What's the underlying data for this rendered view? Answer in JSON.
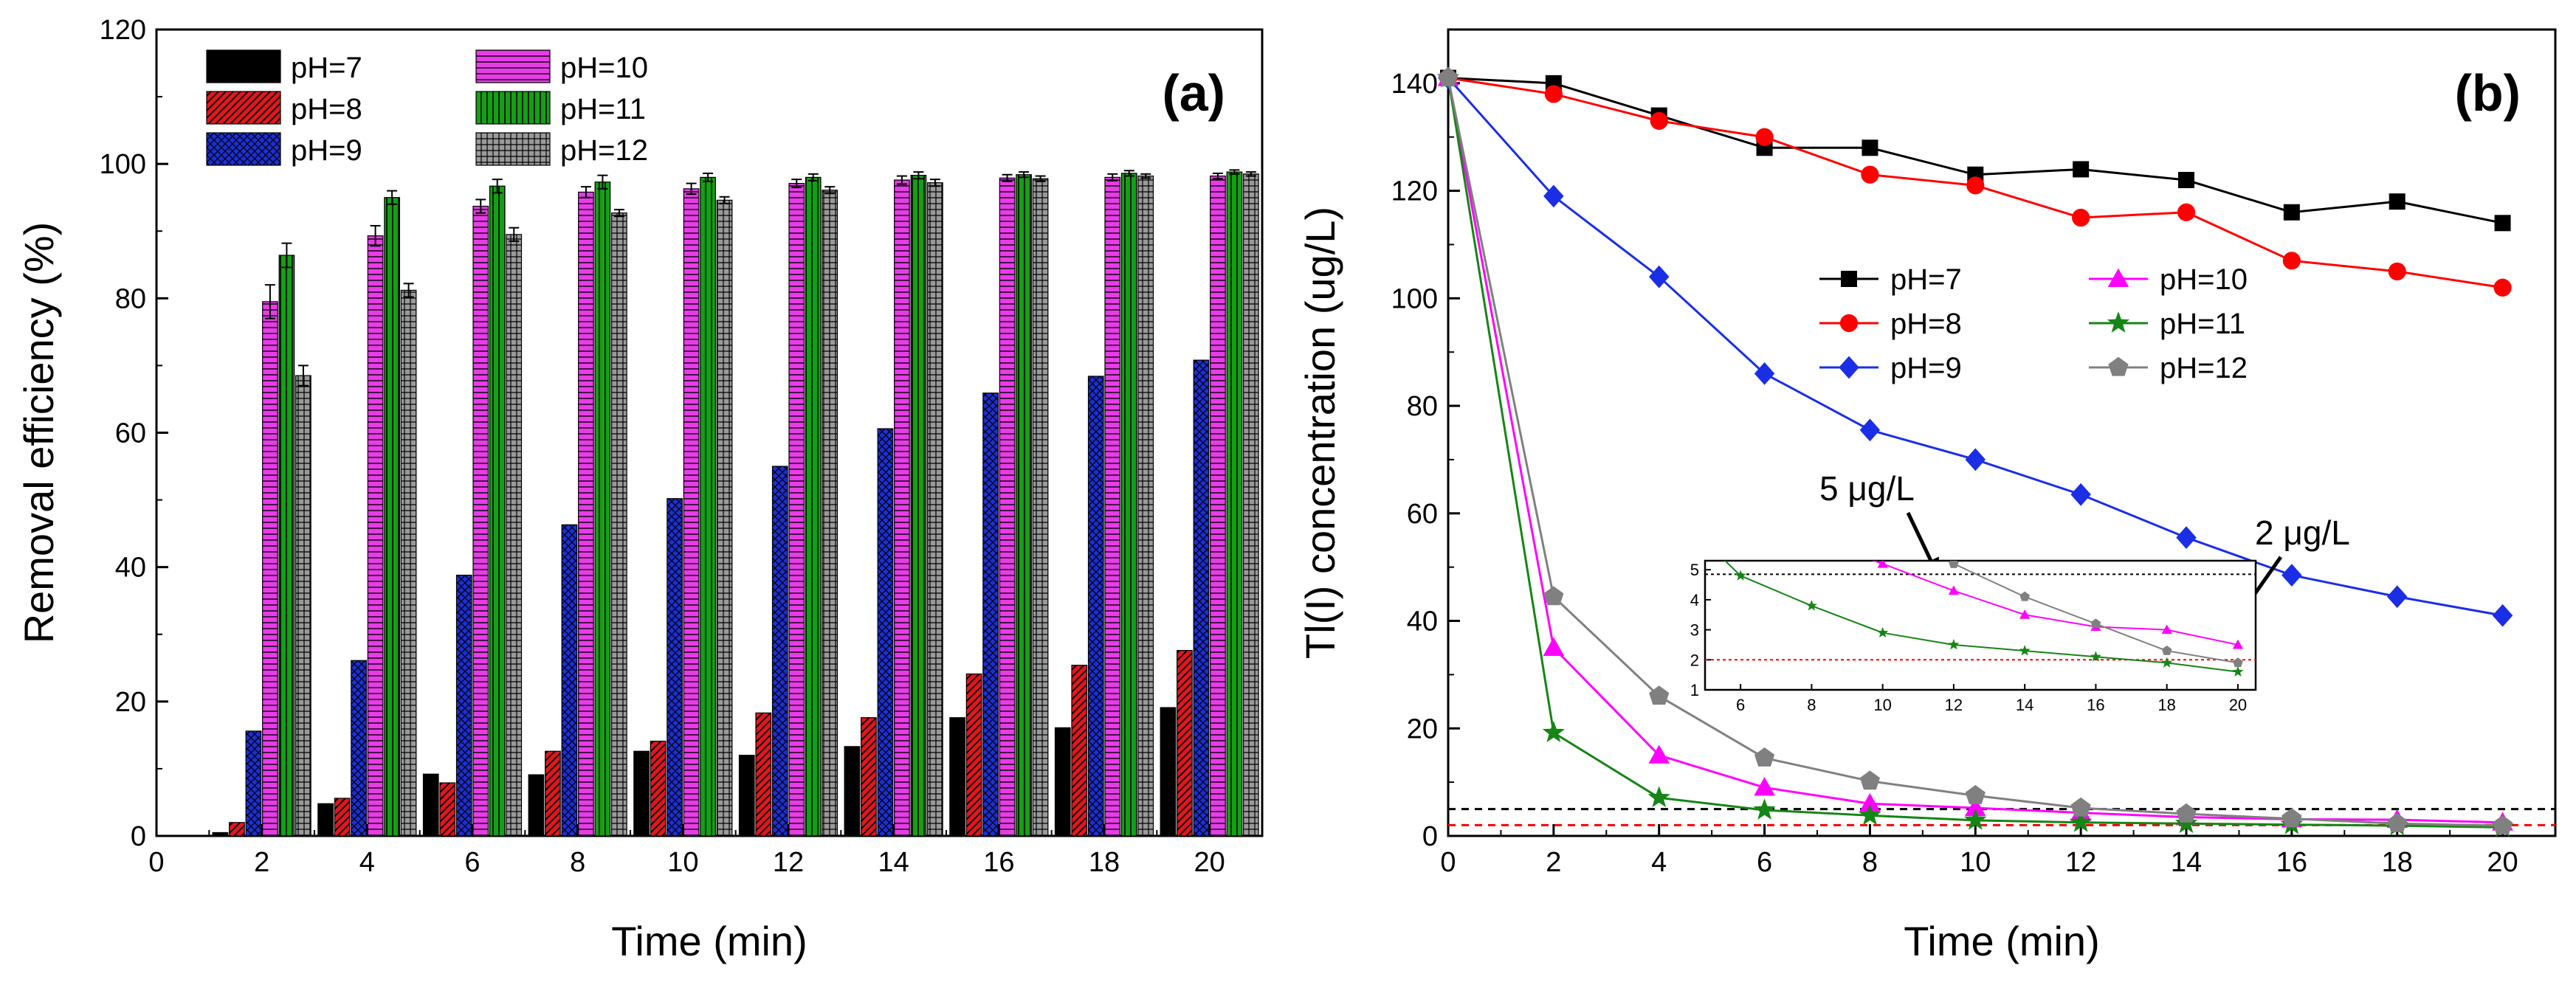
{
  "chart_data": [
    {
      "type": "bar",
      "panel_label": "(a)",
      "xlabel": "Time (min)",
      "ylabel": "Removal efficiency (%)",
      "xlim": [
        0,
        21
      ],
      "ylim": [
        0,
        120
      ],
      "x_ticks": [
        0,
        2,
        4,
        6,
        8,
        10,
        12,
        14,
        16,
        18,
        20
      ],
      "y_ticks": [
        0,
        20,
        40,
        60,
        80,
        100,
        120
      ],
      "legend_placement": "top-left",
      "x": [
        2,
        4,
        6,
        8,
        10,
        12,
        14,
        16,
        18,
        20
      ],
      "series": [
        {
          "name": "pH=7",
          "color": "#000000",
          "pattern": "solid",
          "values": [
            0.5,
            4.8,
            9.2,
            9.1,
            12.6,
            12.0,
            13.3,
            17.6,
            16.1,
            19.1
          ]
        },
        {
          "name": "pH=8",
          "color": "#e8141c",
          "pattern": "diagonal",
          "values": [
            2.0,
            5.6,
            7.9,
            12.6,
            14.1,
            18.3,
            17.6,
            24.1,
            25.4,
            27.6
          ]
        },
        {
          "name": "pH=9",
          "color": "#1c2fd6",
          "pattern": "crosshatch",
          "values": [
            15.6,
            26.1,
            38.8,
            46.3,
            50.2,
            55.0,
            60.6,
            65.9,
            68.4,
            70.8
          ]
        },
        {
          "name": "pH=10",
          "color": "#e83ce8",
          "pattern": "horizontal",
          "values": [
            79.5,
            89.3,
            93.7,
            95.8,
            96.3,
            97.1,
            97.6,
            97.9,
            98.0,
            98.2
          ],
          "errors": [
            2.5,
            1.5,
            1.0,
            0.8,
            0.8,
            0.6,
            0.6,
            0.5,
            0.5,
            0.4
          ]
        },
        {
          "name": "pH=11",
          "color": "#14a014",
          "pattern": "vertical",
          "values": [
            86.4,
            95.0,
            96.7,
            97.3,
            98.0,
            98.0,
            98.3,
            98.4,
            98.6,
            98.8
          ],
          "errors": [
            1.8,
            1.0,
            1.0,
            1.0,
            0.6,
            0.5,
            0.5,
            0.4,
            0.4,
            0.3
          ]
        },
        {
          "name": "pH=12",
          "color": "#8c8c8c",
          "pattern": "grid",
          "values": [
            68.5,
            81.2,
            89.5,
            92.7,
            94.6,
            96.1,
            97.2,
            97.8,
            98.2,
            98.5
          ],
          "errors": [
            1.5,
            1.0,
            1.0,
            0.5,
            0.5,
            0.5,
            0.5,
            0.4,
            0.3,
            0.3
          ]
        }
      ]
    },
    {
      "type": "line",
      "panel_label": "(b)",
      "xlabel": "Time (min)",
      "ylabel": "Tl(I) concentration (ug/L)",
      "xlim": [
        0,
        21
      ],
      "ylim": [
        0,
        150
      ],
      "x_ticks": [
        0,
        2,
        4,
        6,
        8,
        10,
        12,
        14,
        16,
        18,
        20
      ],
      "y_ticks": [
        0,
        20,
        40,
        60,
        80,
        100,
        120,
        140
      ],
      "legend_placement": "center-right",
      "x": [
        0,
        2,
        4,
        6,
        8,
        10,
        12,
        14,
        16,
        18,
        20
      ],
      "series": [
        {
          "name": "pH=7",
          "color": "#000000",
          "marker": "square",
          "values": [
            141,
            140,
            134,
            128,
            128,
            123,
            124,
            122,
            116,
            118,
            114
          ]
        },
        {
          "name": "pH=8",
          "color": "#ff0000",
          "marker": "circle",
          "values": [
            141,
            138,
            133,
            130,
            123,
            121,
            115,
            116,
            107,
            105,
            102
          ]
        },
        {
          "name": "pH=9",
          "color": "#1a2ee6",
          "marker": "diamond",
          "values": [
            141,
            119,
            104,
            86,
            75.5,
            70,
            63.5,
            55.5,
            48.5,
            44.5,
            41
          ]
        },
        {
          "name": "pH=10",
          "color": "#ff00ff",
          "marker": "triangle",
          "values": [
            141,
            35,
            15,
            9,
            6,
            5.2,
            4.3,
            3.5,
            3.1,
            3.0,
            2.5
          ]
        },
        {
          "name": "pH=11",
          "color": "#158515",
          "marker": "star",
          "values": [
            141,
            19.2,
            7.1,
            4.8,
            3.8,
            2.9,
            2.5,
            2.3,
            2.1,
            1.9,
            1.6
          ]
        },
        {
          "name": "pH=12",
          "color": "#808080",
          "marker": "pentagon",
          "values": [
            141,
            44.5,
            26,
            14.5,
            10.2,
            7.5,
            5.2,
            4.1,
            3.2,
            2.3,
            1.9
          ]
        }
      ],
      "reference_lines": [
        {
          "y": 5,
          "color": "#000000"
        },
        {
          "y": 2,
          "color": "#ff0000"
        }
      ],
      "annotations": [
        "5 μg/L",
        "2 μg/L"
      ],
      "inset": {
        "xlim": [
          5,
          20.5
        ],
        "ylim": [
          1,
          5.3
        ],
        "x_ticks": [
          6,
          8,
          10,
          12,
          14,
          16,
          18,
          20
        ],
        "y_ticks": [
          1,
          2,
          3,
          4,
          5
        ],
        "reference_lines": [
          {
            "y": 4.85,
            "color": "#000000"
          },
          {
            "y": 2,
            "color": "#ff0000"
          }
        ]
      }
    }
  ]
}
